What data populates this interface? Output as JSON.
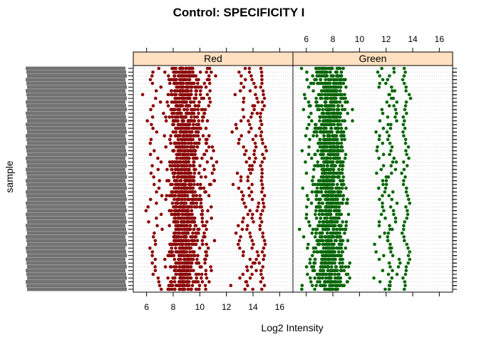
{
  "chart_data": {
    "type": "scatter",
    "title": "Control: SPECIFICITY I",
    "xlabel": "Log2 Intensity",
    "ylabel": "sample",
    "xlim": [
      5,
      17
    ],
    "xticks": [
      6,
      8,
      10,
      12,
      14,
      16
    ],
    "grid": true,
    "legend": "none",
    "n_samples": 60,
    "sample_labels_note": "y-axis sample IDs are overprinted and illegible",
    "panels": [
      {
        "name": "Red",
        "color": "#8b0000",
        "strip_color": "#ffe0c0",
        "bands": [
          {
            "center": 8.8,
            "spread": 0.55,
            "points_per_sample": 22
          },
          {
            "center": 6.6,
            "spread": 0.35,
            "points_per_sample": 1
          },
          {
            "center": 10.4,
            "spread": 0.35,
            "points_per_sample": 2
          },
          {
            "center": 13.2,
            "spread": 0.3,
            "points_per_sample": 1
          },
          {
            "center": 14.0,
            "spread": 0.15,
            "points_per_sample": 1
          },
          {
            "center": 14.7,
            "spread": 0.1,
            "points_per_sample": 1
          }
        ]
      },
      {
        "name": "Green",
        "color": "#006400",
        "strip_color": "#ffe0c0",
        "bands": [
          {
            "center": 7.8,
            "spread": 0.6,
            "points_per_sample": 22
          },
          {
            "center": 6.2,
            "spread": 0.35,
            "points_per_sample": 1
          },
          {
            "center": 11.8,
            "spread": 0.35,
            "points_per_sample": 1
          },
          {
            "center": 12.4,
            "spread": 0.2,
            "points_per_sample": 1
          },
          {
            "center": 13.5,
            "spread": 0.1,
            "points_per_sample": 1
          }
        ]
      }
    ]
  }
}
